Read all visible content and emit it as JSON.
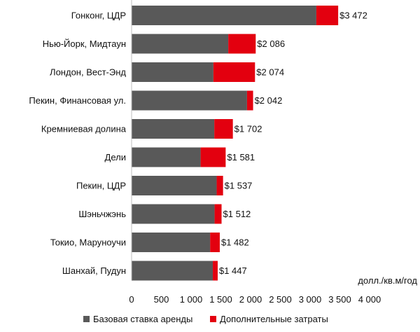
{
  "chart_data": {
    "type": "bar",
    "orientation": "horizontal",
    "stacked": true,
    "categories": [
      "Гонконг, ЦДР",
      "Нью-Йорк, Мидтаун",
      "Лондон, Вест-Энд",
      "Пекин, Финансовая ул.",
      "Кремниевая долина",
      "Дели",
      "Пекин, ЦДР",
      "Шэньчжэнь",
      "Токио, Маруноучи",
      "Шанхай, Пудун"
    ],
    "series": [
      {
        "name": "Базовая ставка аренды",
        "color": "#595959",
        "values": [
          3105,
          1625,
          1375,
          1940,
          1390,
          1160,
          1430,
          1395,
          1320,
          1365
        ]
      },
      {
        "name": "Дополнительные затраты",
        "color": "#e3000f",
        "values": [
          367,
          461,
          699,
          102,
          312,
          421,
          107,
          117,
          162,
          82
        ]
      }
    ],
    "totals": [
      "$3 472",
      "$2 086",
      "$2 074",
      "$2 042",
      "$1 702",
      "$1 581",
      "$1 537",
      "$1 512",
      "$1 482",
      "$1 447"
    ],
    "xlim": [
      0,
      4000
    ],
    "xticks": [
      0,
      500,
      1000,
      1500,
      2000,
      2500,
      3000,
      3500,
      4000
    ],
    "xtick_labels": [
      "0",
      "500",
      "1 000",
      "1 500",
      "2 000",
      "2 500",
      "3 000",
      "3 500",
      "4 000"
    ],
    "unit_label": "долл./кв.м/год",
    "legend_position": "bottom",
    "grid": false
  }
}
